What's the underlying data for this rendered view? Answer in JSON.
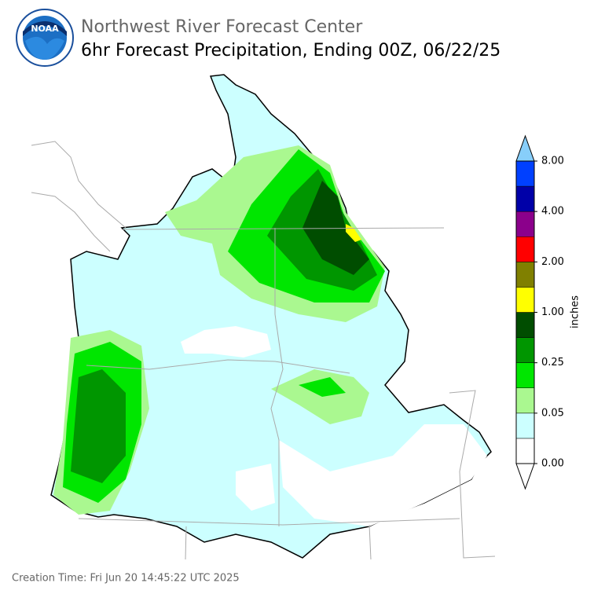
{
  "header": {
    "logo_text": "NOAA",
    "agency": "Northwest River Forecast Center",
    "title": "6hr Forecast Precipitation, Ending 00Z, 06/22/25"
  },
  "colorbar": {
    "label": "inches",
    "ticks": [
      "0.00",
      "0.05",
      "0.25",
      "1.00",
      "2.00",
      "4.00",
      "8.00"
    ],
    "colors": [
      "#ffffff",
      "#ccffff",
      "#aaf890",
      "#00e600",
      "#009600",
      "#004d00",
      "#ffff00",
      "#808000",
      "#ff0000",
      "#8b008b",
      "#0000a8",
      "#0040ff"
    ],
    "under_color": "#ffffff",
    "over_color": "#87cefa"
  },
  "footer": {
    "creation_time": "Creation Time: Fri Jun 20 14:45:22 UTC 2025"
  }
}
